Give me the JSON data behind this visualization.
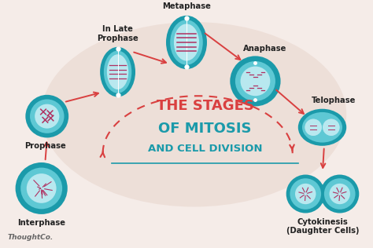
{
  "background_color": "#f5ece8",
  "blob_color": "#e8d5cc",
  "teal_outer": "#1b9aaa",
  "teal_ring": "#1b9aaa",
  "teal_mid": "#5ec8d4",
  "teal_inner": "#b8e8ef",
  "chrom_color": "#b03060",
  "white": "#ffffff",
  "red_arrow": "#d94040",
  "dashed_color": "#d94040",
  "title1": "THE STAGES",
  "title2": "OF MITOSIS",
  "title3": "AND CELL DIVISION",
  "title_color1": "#d94040",
  "title_color2": "#1b9aaa",
  "label_color": "#222222",
  "line_color": "#1b9aaa",
  "watermark": "ThoughtCo.",
  "watermark_color": "#666666"
}
